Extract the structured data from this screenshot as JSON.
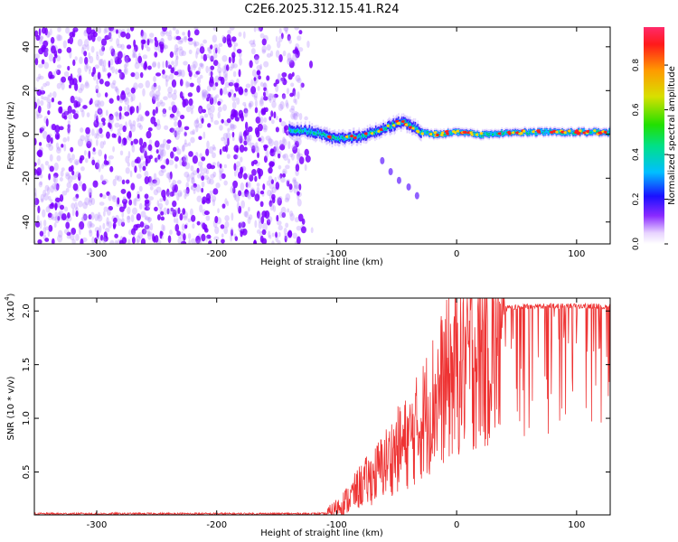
{
  "title": "C2E6.2025.312.15.41.R24",
  "chart_data": [
    {
      "type": "heatmap",
      "name": "spectrogram",
      "xlabel": "Height of straight line (km)",
      "ylabel": "Frequency (Hz)",
      "xlim": [
        -352,
        128
      ],
      "ylim": [
        -50,
        49
      ],
      "xticks": [
        -300,
        -200,
        -100,
        0,
        100
      ],
      "yticks": [
        -40,
        -20,
        0,
        20,
        40
      ],
      "colorbar": {
        "label": "Normalized spectral amplitude",
        "range": [
          0,
          0.97
        ],
        "ticks": [
          0.0,
          0.2,
          0.4,
          0.6,
          0.8
        ],
        "tick_labels": [
          "0.0",
          "0.2",
          "0.4",
          "0.6",
          "0.8"
        ]
      },
      "regions": [
        {
          "kind": "noise",
          "x_range": [
            -352,
            -130
          ],
          "freq_range": [
            -50,
            49
          ],
          "amplitude": 0.1
        },
        {
          "kind": "signal-band",
          "x_range": [
            -140,
            128
          ],
          "center_freq": [
            [
              -140,
              2
            ],
            [
              -120,
              1
            ],
            [
              -100,
              -2
            ],
            [
              -80,
              -1
            ],
            [
              -60,
              3
            ],
            [
              -45,
              6
            ],
            [
              -30,
              1
            ],
            [
              -20,
              0
            ],
            [
              0,
              1
            ],
            [
              20,
              0
            ],
            [
              60,
              1
            ],
            [
              128,
              1
            ]
          ],
          "peak_amplitude": 0.9
        },
        {
          "kind": "echo",
          "points": [
            [
              -62,
              -12
            ],
            [
              -55,
              -17
            ],
            [
              -48,
              -21
            ],
            [
              -40,
              -24
            ],
            [
              -33,
              -28
            ]
          ],
          "amplitude": 0.2
        }
      ]
    },
    {
      "type": "line",
      "name": "snr",
      "xlabel": "Height of straight line (km)",
      "ylabel": "SNR (10 * v/v)",
      "multiplier": "(x10^4)",
      "multiplier_base": "(x10",
      "multiplier_exp": "4",
      "xlim": [
        -352,
        128
      ],
      "ylim": [
        0.1,
        2.12
      ],
      "xticks": [
        -300,
        -200,
        -100,
        0,
        100
      ],
      "yticks": [
        0.5,
        1.0,
        1.5,
        2.0
      ],
      "ytick_labels": [
        "0.5",
        "1.0",
        "1.5",
        "2.0"
      ],
      "line_color": "#ee3333",
      "series": [
        {
          "name": "SNR envelope",
          "x": [
            -352,
            -110,
            -100,
            -90,
            -80,
            -70,
            -60,
            -50,
            -40,
            -30,
            -20,
            -15,
            -10,
            0,
            10,
            20,
            30,
            40,
            50,
            60,
            80,
            100,
            128
          ],
          "values": [
            0.11,
            0.11,
            0.2,
            0.3,
            0.45,
            0.55,
            0.7,
            0.85,
            0.95,
            1.15,
            1.4,
            1.5,
            1.6,
            1.75,
            1.9,
            1.98,
            2.03,
            2.05,
            2.06,
            2.07,
            2.07,
            2.07,
            2.07
          ]
        }
      ]
    }
  ],
  "colors": {
    "noise": "#7a00ff",
    "band_low": "#2a1aff",
    "band_mid": "#00c8ff",
    "band_green": "#00e050",
    "band_peak": "#ff2020"
  }
}
